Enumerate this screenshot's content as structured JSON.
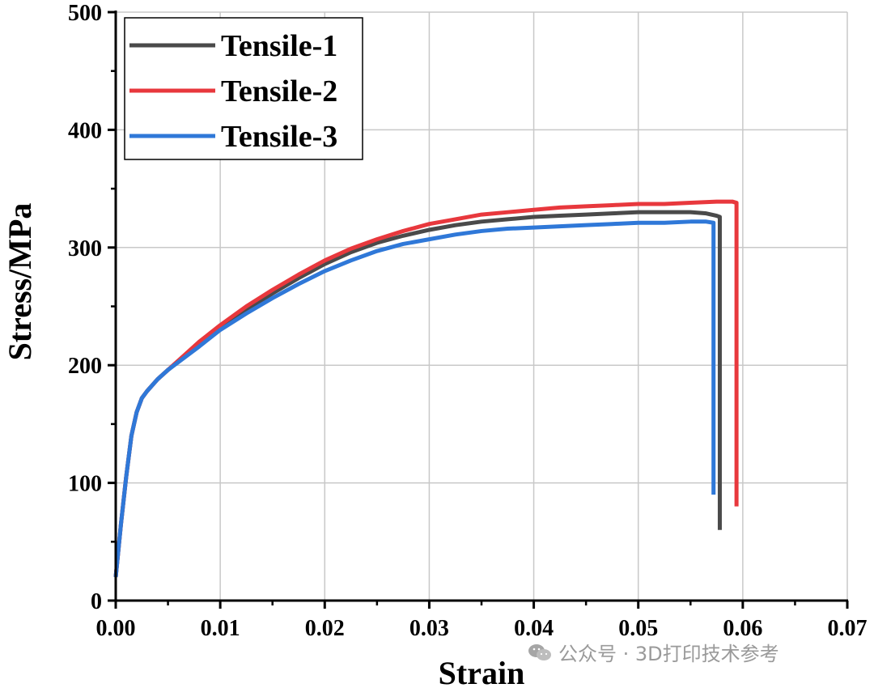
{
  "chart_data": {
    "type": "line",
    "xlabel": "Strain",
    "ylabel": "Stress/MPa",
    "xlim": [
      0,
      0.07
    ],
    "ylim": [
      0,
      500
    ],
    "xticks": [
      "0.00",
      "0.01",
      "0.02",
      "0.03",
      "0.04",
      "0.05",
      "0.06",
      "0.07"
    ],
    "yticks": [
      "0",
      "100",
      "200",
      "300",
      "400",
      "500"
    ],
    "grid": true,
    "legend_position": "top-left",
    "series": [
      {
        "name": "Tensile-1",
        "color": "#4a4a4a",
        "x": [
          0.0,
          0.0005,
          0.001,
          0.0015,
          0.002,
          0.0025,
          0.003,
          0.004,
          0.005,
          0.0065,
          0.008,
          0.01,
          0.0125,
          0.015,
          0.0175,
          0.02,
          0.0225,
          0.025,
          0.0275,
          0.03,
          0.0325,
          0.035,
          0.0375,
          0.04,
          0.0425,
          0.045,
          0.0475,
          0.05,
          0.0525,
          0.055,
          0.0565,
          0.0575,
          0.0578,
          0.0578
        ],
        "y": [
          20,
          65,
          105,
          140,
          160,
          172,
          178,
          188,
          196,
          207,
          218,
          232,
          247,
          261,
          274,
          286,
          296,
          304,
          310,
          315,
          319,
          322,
          324,
          326,
          327,
          328,
          329,
          330,
          330,
          330,
          329,
          327,
          326,
          60
        ]
      },
      {
        "name": "Tensile-2",
        "color": "#e8383d",
        "x": [
          0.0,
          0.0005,
          0.001,
          0.0015,
          0.002,
          0.0025,
          0.003,
          0.004,
          0.005,
          0.0065,
          0.008,
          0.01,
          0.0125,
          0.015,
          0.0175,
          0.02,
          0.0225,
          0.025,
          0.0275,
          0.03,
          0.0325,
          0.035,
          0.0375,
          0.04,
          0.0425,
          0.045,
          0.0475,
          0.05,
          0.0525,
          0.055,
          0.0575,
          0.059,
          0.0594,
          0.0594
        ],
        "y": [
          20,
          65,
          105,
          140,
          160,
          172,
          178,
          188,
          196,
          208,
          220,
          234,
          250,
          264,
          277,
          289,
          299,
          307,
          314,
          320,
          324,
          328,
          330,
          332,
          334,
          335,
          336,
          337,
          337,
          338,
          339,
          339,
          338,
          80
        ]
      },
      {
        "name": "Tensile-3",
        "color": "#2f78d8",
        "x": [
          0.0,
          0.0005,
          0.001,
          0.0015,
          0.002,
          0.0025,
          0.003,
          0.004,
          0.005,
          0.0065,
          0.008,
          0.01,
          0.0125,
          0.015,
          0.0175,
          0.02,
          0.0225,
          0.025,
          0.0275,
          0.03,
          0.0325,
          0.035,
          0.0375,
          0.04,
          0.0425,
          0.045,
          0.0475,
          0.05,
          0.0525,
          0.055,
          0.0565,
          0.0572,
          0.0572
        ],
        "y": [
          20,
          65,
          105,
          140,
          160,
          172,
          178,
          188,
          196,
          206,
          216,
          230,
          244,
          257,
          269,
          280,
          289,
          297,
          303,
          307,
          311,
          314,
          316,
          317,
          318,
          319,
          320,
          321,
          321,
          322,
          322,
          321,
          90
        ]
      }
    ]
  },
  "watermark": {
    "icon": "wechat-icon",
    "text": "公众号 · 3D打印技术参考"
  }
}
